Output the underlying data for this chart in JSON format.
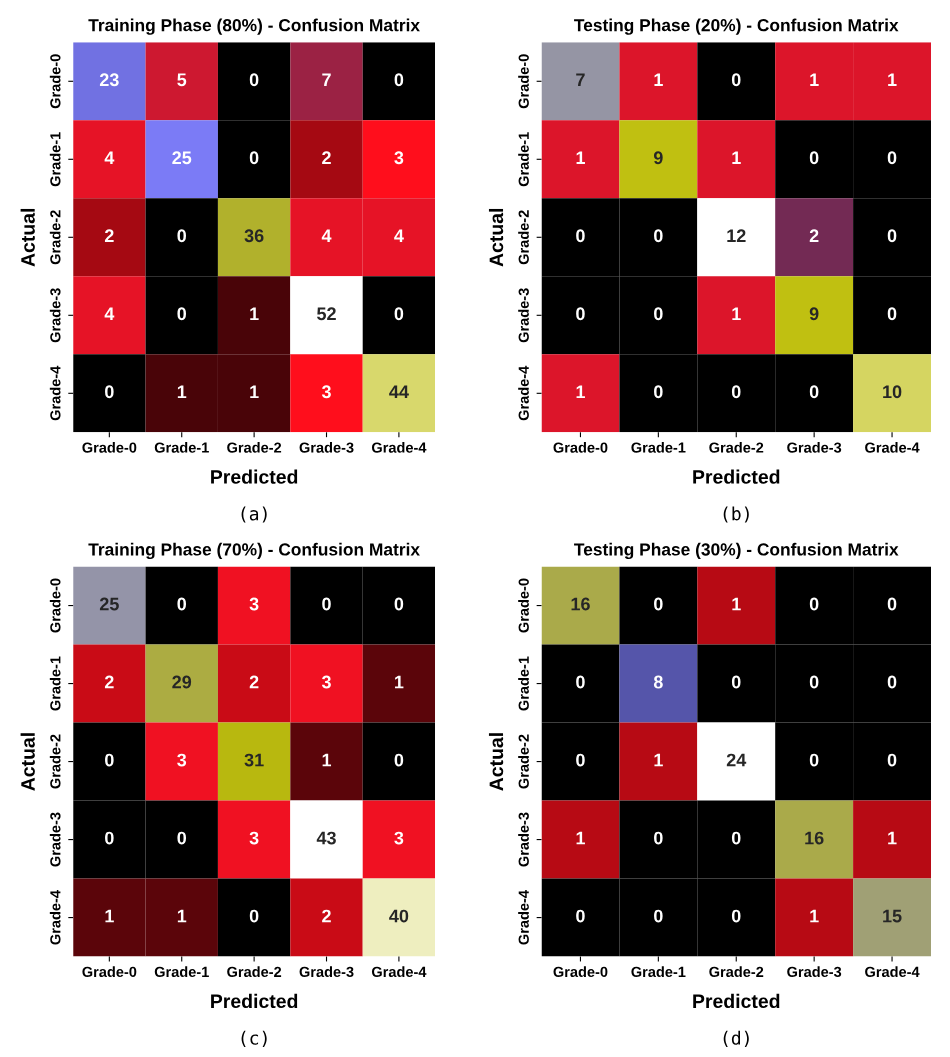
{
  "chart_data": [
    {
      "type": "heatmap",
      "title": "Training Phase (80%) - Confusion Matrix",
      "xlabel": "Predicted",
      "ylabel": "Actual",
      "annotations": [
        "(a)"
      ],
      "data_labels": true,
      "categories": [
        "Grade-0",
        "Grade-1",
        "Grade-2",
        "Grade-3",
        "Grade-4"
      ],
      "y_categories": [
        "Grade-0",
        "Grade-1",
        "Grade-2",
        "Grade-3",
        "Grade-4"
      ],
      "cells": [
        [
          23,
          5,
          0,
          7,
          0
        ],
        [
          4,
          25,
          0,
          2,
          3
        ],
        [
          2,
          0,
          36,
          4,
          4
        ],
        [
          4,
          0,
          1,
          52,
          0
        ],
        [
          0,
          1,
          1,
          3,
          44
        ]
      ]
    },
    {
      "type": "heatmap",
      "title": "Testing Phase (20%) - Confusion Matrix",
      "xlabel": "Predicted",
      "ylabel": "Actual",
      "annotations": [
        "(b)"
      ],
      "data_labels": true,
      "categories": [
        "Grade-0",
        "Grade-1",
        "Grade-2",
        "Grade-3",
        "Grade-4"
      ],
      "y_categories": [
        "Grade-0",
        "Grade-1",
        "Grade-2",
        "Grade-3",
        "Grade-4"
      ],
      "cells": [
        [
          7,
          1,
          0,
          1,
          1
        ],
        [
          1,
          9,
          1,
          0,
          0
        ],
        [
          0,
          0,
          12,
          2,
          0
        ],
        [
          0,
          0,
          1,
          9,
          0
        ],
        [
          1,
          0,
          0,
          0,
          10
        ]
      ]
    },
    {
      "type": "heatmap",
      "title": "Training Phase (70%) - Confusion Matrix",
      "xlabel": "Predicted",
      "ylabel": "Actual",
      "annotations": [
        "(c)"
      ],
      "data_labels": true,
      "categories": [
        "Grade-0",
        "Grade-1",
        "Grade-2",
        "Grade-3",
        "Grade-4"
      ],
      "y_categories": [
        "Grade-0",
        "Grade-1",
        "Grade-2",
        "Grade-3",
        "Grade-4"
      ],
      "cells": [
        [
          25,
          0,
          3,
          0,
          0
        ],
        [
          2,
          29,
          2,
          3,
          1
        ],
        [
          0,
          3,
          31,
          1,
          0
        ],
        [
          0,
          0,
          3,
          43,
          3
        ],
        [
          1,
          1,
          0,
          2,
          40
        ]
      ]
    },
    {
      "type": "heatmap",
      "title": "Testing Phase (30%) - Confusion Matrix",
      "xlabel": "Predicted",
      "ylabel": "Actual",
      "annotations": [
        "(d)"
      ],
      "data_labels": true,
      "categories": [
        "Grade-0",
        "Grade-1",
        "Grade-2",
        "Grade-3",
        "Grade-4"
      ],
      "y_categories": [
        "Grade-0",
        "Grade-1",
        "Grade-2",
        "Grade-3",
        "Grade-4"
      ],
      "cells": [
        [
          16,
          0,
          1,
          0,
          0
        ],
        [
          0,
          8,
          0,
          0,
          0
        ],
        [
          0,
          1,
          24,
          0,
          0
        ],
        [
          1,
          0,
          0,
          16,
          1
        ],
        [
          0,
          0,
          0,
          1,
          15
        ]
      ]
    }
  ]
}
